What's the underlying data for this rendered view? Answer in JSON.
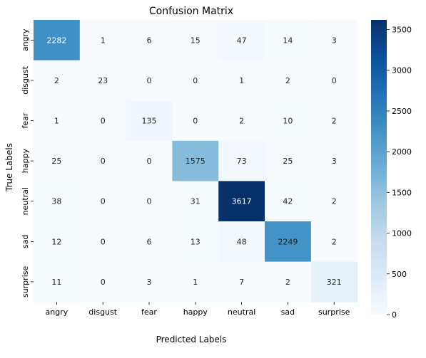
{
  "chart_data": {
    "type": "heatmap",
    "title": "Confusion Matrix",
    "xlabel": "Predicted Labels",
    "ylabel": "True Labels",
    "x_categories": [
      "angry",
      "disgust",
      "fear",
      "happy",
      "neutral",
      "sad",
      "surprise"
    ],
    "y_categories": [
      "angry",
      "disgust",
      "fear",
      "happy",
      "neutral",
      "sad",
      "surprise"
    ],
    "values": [
      [
        2282,
        1,
        6,
        15,
        47,
        14,
        3
      ],
      [
        2,
        23,
        0,
        0,
        1,
        2,
        0
      ],
      [
        1,
        0,
        135,
        0,
        2,
        10,
        2
      ],
      [
        25,
        0,
        0,
        1575,
        73,
        25,
        3
      ],
      [
        38,
        0,
        0,
        31,
        3617,
        42,
        2
      ],
      [
        12,
        0,
        6,
        13,
        48,
        2249,
        2
      ],
      [
        11,
        0,
        3,
        1,
        7,
        2,
        321
      ]
    ],
    "colormap": "Blues",
    "color_range": [
      0,
      3617
    ],
    "colorbar_ticks": [
      0,
      500,
      1000,
      1500,
      2000,
      2500,
      3000,
      3500
    ],
    "annotations": true
  }
}
